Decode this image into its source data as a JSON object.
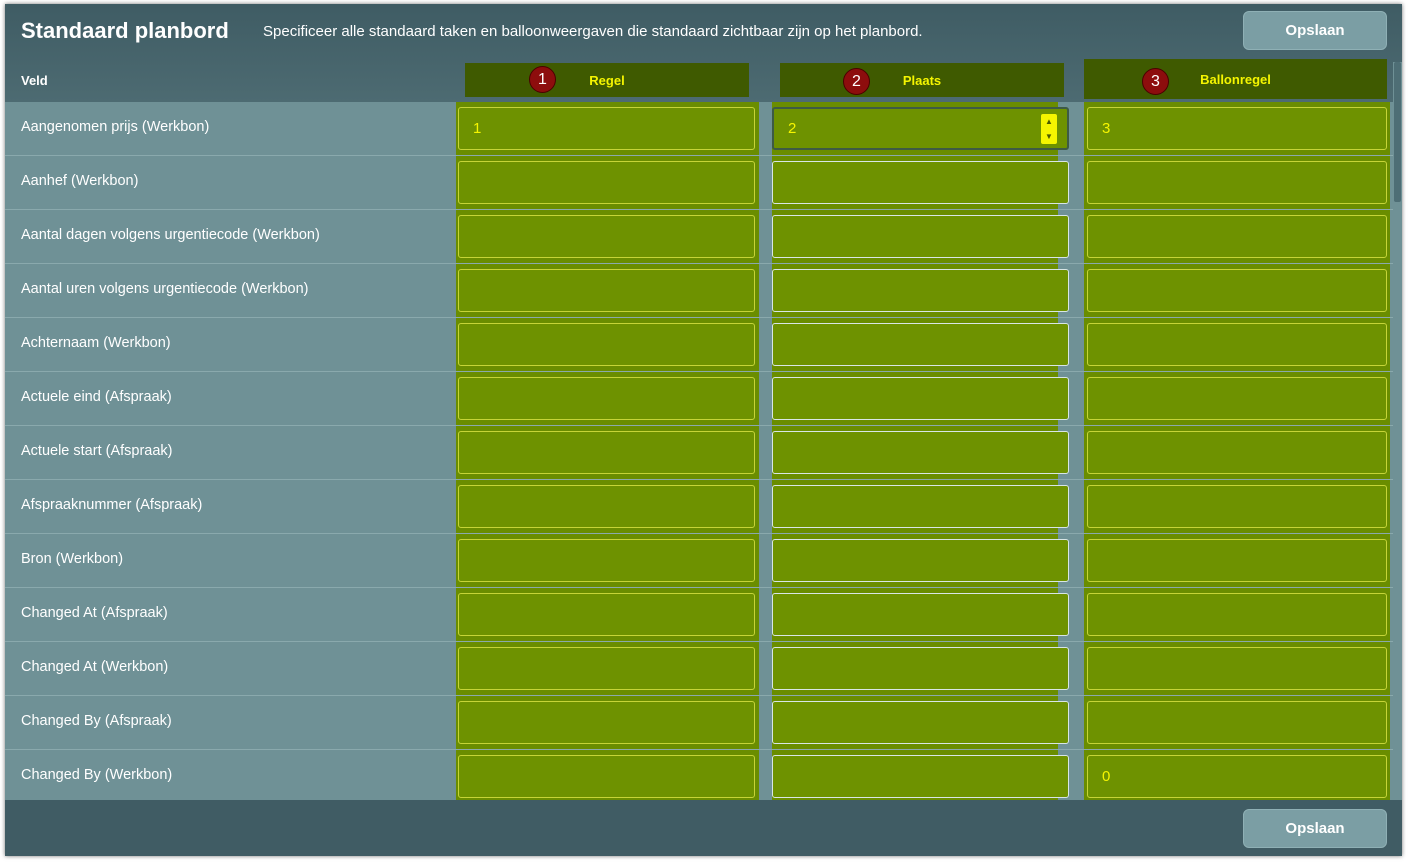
{
  "header": {
    "title": "Standaard planbord",
    "subtitle": "Specificeer alle standaard taken en balloonweergaven die standaard zichtbaar zijn op het planbord.",
    "save_label": "Opslaan"
  },
  "footer": {
    "save_label": "Opslaan"
  },
  "columns": {
    "field_label": "Veld",
    "items": [
      {
        "number": "1",
        "label": "Regel"
      },
      {
        "number": "2",
        "label": "Plaats"
      },
      {
        "number": "3",
        "label": "Ballonregel"
      }
    ]
  },
  "rows": [
    {
      "label": "Aangenomen prijs (Werkbon)",
      "regel": "1",
      "plaats": "2",
      "ballonregel": "3"
    },
    {
      "label": "Aanhef (Werkbon)",
      "regel": "",
      "plaats": "",
      "ballonregel": ""
    },
    {
      "label": "Aantal dagen volgens urgentiecode (Werkbon)",
      "regel": "",
      "plaats": "",
      "ballonregel": ""
    },
    {
      "label": "Aantal uren volgens urgentiecode (Werkbon)",
      "regel": "",
      "plaats": "",
      "ballonregel": ""
    },
    {
      "label": "Achternaam (Werkbon)",
      "regel": "",
      "plaats": "",
      "ballonregel": ""
    },
    {
      "label": "Actuele eind (Afspraak)",
      "regel": "",
      "plaats": "",
      "ballonregel": ""
    },
    {
      "label": "Actuele start (Afspraak)",
      "regel": "",
      "plaats": "",
      "ballonregel": ""
    },
    {
      "label": "Afspraaknummer (Afspraak)",
      "regel": "",
      "plaats": "",
      "ballonregel": ""
    },
    {
      "label": "Bron (Werkbon)",
      "regel": "",
      "plaats": "",
      "ballonregel": ""
    },
    {
      "label": "Changed At (Afspraak)",
      "regel": "",
      "plaats": "",
      "ballonregel": ""
    },
    {
      "label": "Changed At (Werkbon)",
      "regel": "",
      "plaats": "",
      "ballonregel": ""
    },
    {
      "label": "Changed By (Afspraak)",
      "regel": "",
      "plaats": "",
      "ballonregel": ""
    },
    {
      "label": "Changed By (Werkbon)",
      "regel": "",
      "plaats": "",
      "ballonregel": "0"
    }
  ],
  "colors": {
    "accent_text": "#f5f500",
    "column_header_bg": "#3f5a00",
    "column_bg": "#6a8d00",
    "badge_bg": "#8d0d0d"
  },
  "icons": {
    "spinner": "up-down-spinner-icon"
  }
}
